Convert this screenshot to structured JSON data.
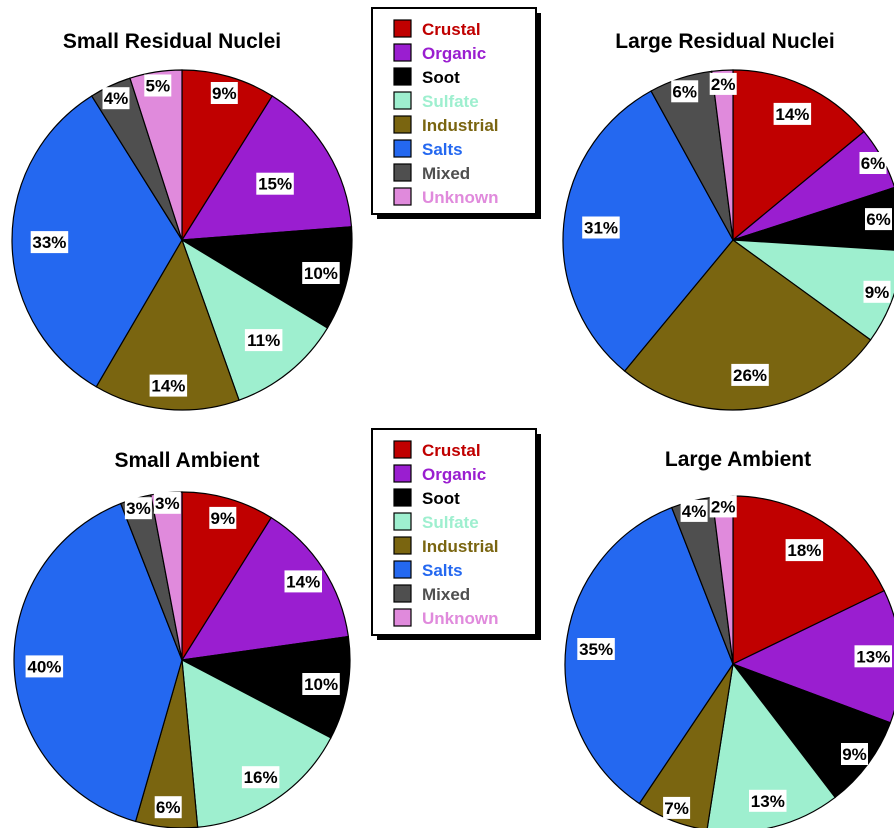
{
  "categories": [
    "Crustal",
    "Organic",
    "Soot",
    "Sulfate",
    "Industrial",
    "Salts",
    "Mixed",
    "Unknown"
  ],
  "colors": {
    "Crustal": "#C00000",
    "Organic": "#9A1ED0",
    "Soot": "#000000",
    "Sulfate": "#9EEFCF",
    "Industrial": "#7A6510",
    "Salts": "#2468F0",
    "Mixed": "#4F4F4F",
    "Unknown": "#E08ADC"
  },
  "legend_text_colors": {
    "Crustal": "#C00000",
    "Organic": "#9A1ED0",
    "Soot": "#000000",
    "Sulfate": "#9EEFCF",
    "Industrial": "#7A6510",
    "Salts": "#2468F0",
    "Mixed": "#4F4F4F",
    "Unknown": "#E08ADC"
  },
  "chart_data": [
    {
      "type": "pie",
      "title": "Small Residual Nuclei",
      "categories": [
        "Crustal",
        "Organic",
        "Soot",
        "Sulfate",
        "Industrial",
        "Salts",
        "Mixed",
        "Unknown"
      ],
      "values": [
        9,
        15,
        10,
        11,
        14,
        33,
        4,
        5
      ],
      "labels": [
        "9%",
        "15%",
        "10%",
        "11%",
        "14%",
        "33%",
        "4%",
        "5%"
      ]
    },
    {
      "type": "pie",
      "title": "Large Residual Nuclei",
      "categories": [
        "Crustal",
        "Organic",
        "Soot",
        "Sulfate",
        "Industrial",
        "Salts",
        "Mixed",
        "Unknown"
      ],
      "values": [
        14,
        6,
        6,
        9,
        26,
        31,
        6,
        2
      ],
      "labels": [
        "14%",
        "6%",
        "6%",
        "9%",
        "26%",
        "31%",
        "6%",
        "2%"
      ]
    },
    {
      "type": "pie",
      "title": "Small Ambient",
      "categories": [
        "Crustal",
        "Organic",
        "Soot",
        "Sulfate",
        "Industrial",
        "Salts",
        "Mixed",
        "Unknown"
      ],
      "values": [
        9,
        14,
        10,
        16,
        6,
        40,
        3,
        3
      ],
      "labels": [
        "9%",
        "14%",
        "10%",
        "16%",
        "6%",
        "40%",
        "3%",
        "3%"
      ]
    },
    {
      "type": "pie",
      "title": "Large Ambient",
      "categories": [
        "Crustal",
        "Organic",
        "Soot",
        "Sulfate",
        "Industrial",
        "Salts",
        "Mixed",
        "Unknown"
      ],
      "values": [
        18,
        13,
        9,
        13,
        7,
        35,
        4,
        2
      ],
      "labels": [
        "18%",
        "13%",
        "9%",
        "13%",
        "7%",
        "35%",
        "4%",
        "2%"
      ]
    }
  ]
}
